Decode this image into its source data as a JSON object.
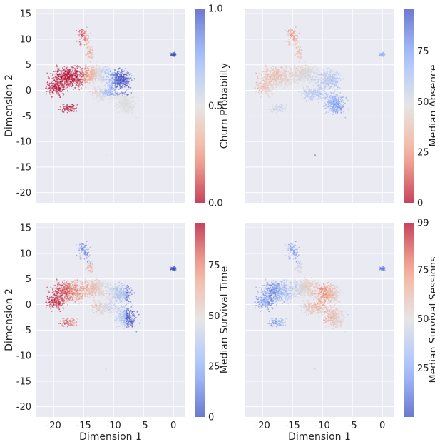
{
  "chart_data": [
    {
      "type": "scatter",
      "xlabel": "",
      "ylabel": "Dimension 2",
      "xlim": [
        -23,
        2
      ],
      "ylim": [
        -22,
        16
      ],
      "xticks": [
        "-20",
        "-15",
        "-10",
        "-5",
        "0"
      ],
      "yticks": [
        "15",
        "10",
        "5",
        "0",
        "-5",
        "-10",
        "-15",
        "-20"
      ],
      "grid": true,
      "colorbar": {
        "label": "Churn Probability",
        "range": [
          0.0,
          1.0
        ],
        "ticks": [
          "0.0",
          "0.5",
          "1.0"
        ],
        "tick_values": [
          0.0,
          0.5,
          1.0
        ],
        "colormap": "coolwarm_r"
      }
    },
    {
      "type": "scatter",
      "xlabel": "",
      "ylabel": "",
      "xlim": [
        -23,
        2
      ],
      "ylim": [
        -22,
        16
      ],
      "xticks": [
        "-20",
        "-15",
        "-10",
        "-5",
        "0"
      ],
      "yticks": [
        "15",
        "10",
        "5",
        "0",
        "-5",
        "-10",
        "-15",
        "-20"
      ],
      "grid": true,
      "colorbar": {
        "label": "Median Absence",
        "range": [
          0,
          96
        ],
        "ticks": [
          "0",
          "25",
          "50",
          "75"
        ],
        "tick_values": [
          0,
          25,
          50,
          75
        ],
        "colormap": "coolwarm_r"
      }
    },
    {
      "type": "scatter",
      "xlabel": "Dimension 1",
      "ylabel": "Dimension 2",
      "xlim": [
        -23,
        2
      ],
      "ylim": [
        -22,
        16
      ],
      "xticks": [
        "-20",
        "-15",
        "-10",
        "-5",
        "0"
      ],
      "yticks": [
        "15",
        "10",
        "5",
        "0",
        "-5",
        "-10",
        "-15",
        "-20"
      ],
      "grid": true,
      "colorbar": {
        "label": "Median Survival Time",
        "range": [
          0,
          96
        ],
        "ticks": [
          "0",
          "25",
          "50",
          "75"
        ],
        "tick_values": [
          0,
          25,
          50,
          75
        ],
        "colormap": "coolwarm"
      }
    },
    {
      "type": "scatter",
      "xlabel": "Dimension 1",
      "ylabel": "",
      "xlim": [
        -23,
        2
      ],
      "ylim": [
        -22,
        16
      ],
      "xticks": [
        "-20",
        "-15",
        "-10",
        "-5",
        "0"
      ],
      "yticks": [
        "15",
        "10",
        "5",
        "0",
        "-5",
        "-10",
        "-15",
        "-20"
      ],
      "grid": true,
      "colorbar": {
        "label": "Median Survival Sessions",
        "range": [
          0,
          99
        ],
        "ticks": [
          "25",
          "50",
          "75",
          "99"
        ],
        "tick_values": [
          25,
          50,
          75,
          99
        ],
        "colormap": "coolwarm"
      }
    }
  ],
  "colors": {
    "panel_bg": "#eaeaf2",
    "grid": "#ffffff",
    "cold": "#3b4cc0",
    "neutral": "#dddddd",
    "warm": "#b40426"
  }
}
